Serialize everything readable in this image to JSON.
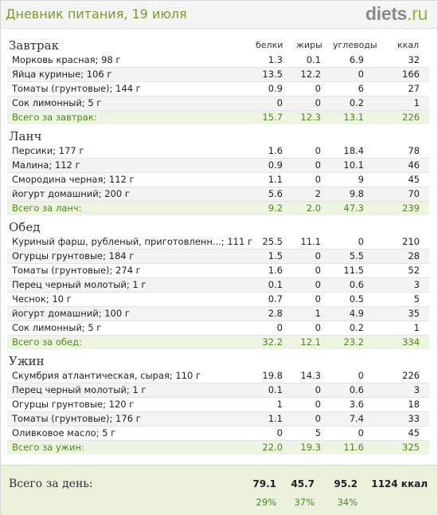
{
  "header": {
    "title": "Дневник питания, 19 июля",
    "logo_main": "diets",
    "logo_tld": ".ru"
  },
  "columns": {
    "protein": "белки",
    "fat": "жиры",
    "carbs": "углеводы",
    "kcal": "ккал"
  },
  "sections": [
    {
      "name": "Завтрак",
      "items": [
        {
          "name": "Морковь красная; 98 г",
          "protein": "1.3",
          "fat": "0.1",
          "carbs": "6.9",
          "kcal": "32"
        },
        {
          "name": "Яйца куриные; 106 г",
          "protein": "13.5",
          "fat": "12.2",
          "carbs": "0",
          "kcal": "166"
        },
        {
          "name": "Томаты (грунтовые); 144 г",
          "protein": "0.9",
          "fat": "0",
          "carbs": "6",
          "kcal": "27"
        },
        {
          "name": "Сок лимонный; 5 г",
          "protein": "0",
          "fat": "0",
          "carbs": "0.2",
          "kcal": "1"
        }
      ],
      "total": {
        "name": "Всего за завтрак:",
        "protein": "15.7",
        "fat": "12.3",
        "carbs": "13.1",
        "kcal": "226"
      }
    },
    {
      "name": "Ланч",
      "items": [
        {
          "name": "Персики; 177 г",
          "protein": "1.6",
          "fat": "0",
          "carbs": "18.4",
          "kcal": "78"
        },
        {
          "name": "Малина; 112 г",
          "protein": "0.9",
          "fat": "0",
          "carbs": "10.1",
          "kcal": "46"
        },
        {
          "name": "Смородина черная; 112 г",
          "protein": "1.1",
          "fat": "0",
          "carbs": "9",
          "kcal": "45"
        },
        {
          "name": "йогурт домашний; 200 г",
          "protein": "5.6",
          "fat": "2",
          "carbs": "9.8",
          "kcal": "70"
        }
      ],
      "total": {
        "name": "Всего за ланч:",
        "protein": "9.2",
        "fat": "2.0",
        "carbs": "47.3",
        "kcal": "239"
      }
    },
    {
      "name": "Обед",
      "items": [
        {
          "name": "Куриный фарш, рубленый, приготовленн...; 111 г",
          "protein": "25.5",
          "fat": "11.1",
          "carbs": "0",
          "kcal": "210"
        },
        {
          "name": "Огурцы грунтовые; 184 г",
          "protein": "1.5",
          "fat": "0",
          "carbs": "5.5",
          "kcal": "28"
        },
        {
          "name": "Томаты (грунтовые); 274 г",
          "protein": "1.6",
          "fat": "0",
          "carbs": "11.5",
          "kcal": "52"
        },
        {
          "name": "Перец черный молотый; 1 г",
          "protein": "0.1",
          "fat": "0",
          "carbs": "0.6",
          "kcal": "3"
        },
        {
          "name": "Чеснок; 10 г",
          "protein": "0.7",
          "fat": "0",
          "carbs": "0.5",
          "kcal": "5"
        },
        {
          "name": "йогурт домашний; 100 г",
          "protein": "2.8",
          "fat": "1",
          "carbs": "4.9",
          "kcal": "35"
        },
        {
          "name": "Сок лимонный; 5 г",
          "protein": "0",
          "fat": "0",
          "carbs": "0.2",
          "kcal": "1"
        }
      ],
      "total": {
        "name": "Всего за обед:",
        "protein": "32.2",
        "fat": "12.1",
        "carbs": "23.2",
        "kcal": "334"
      }
    },
    {
      "name": "Ужин",
      "items": [
        {
          "name": "Скумбрия атлантическая, сырая; 110 г",
          "protein": "19.8",
          "fat": "14.3",
          "carbs": "0",
          "kcal": "226"
        },
        {
          "name": "Перец черный молотый; 1 г",
          "protein": "0.1",
          "fat": "0",
          "carbs": "0.6",
          "kcal": "3"
        },
        {
          "name": "Огурцы грунтовые; 120 г",
          "protein": "1",
          "fat": "0",
          "carbs": "3.6",
          "kcal": "18"
        },
        {
          "name": "Томаты (грунтовые); 176 г",
          "protein": "1.1",
          "fat": "0",
          "carbs": "7.4",
          "kcal": "33"
        },
        {
          "name": "Оливковое масло; 5 г",
          "protein": "0",
          "fat": "5",
          "carbs": "0",
          "kcal": "45"
        }
      ],
      "total": {
        "name": "Всего за ужин:",
        "protein": "22.0",
        "fat": "19.3",
        "carbs": "11.6",
        "kcal": "325"
      }
    }
  ],
  "day": {
    "label": "Всего за день:",
    "protein": "79.1",
    "fat": "45.7",
    "carbs": "95.2",
    "kcal": "1124 ккал",
    "protein_pct": "29%",
    "fat_pct": "37%",
    "carbs_pct": "34%"
  }
}
